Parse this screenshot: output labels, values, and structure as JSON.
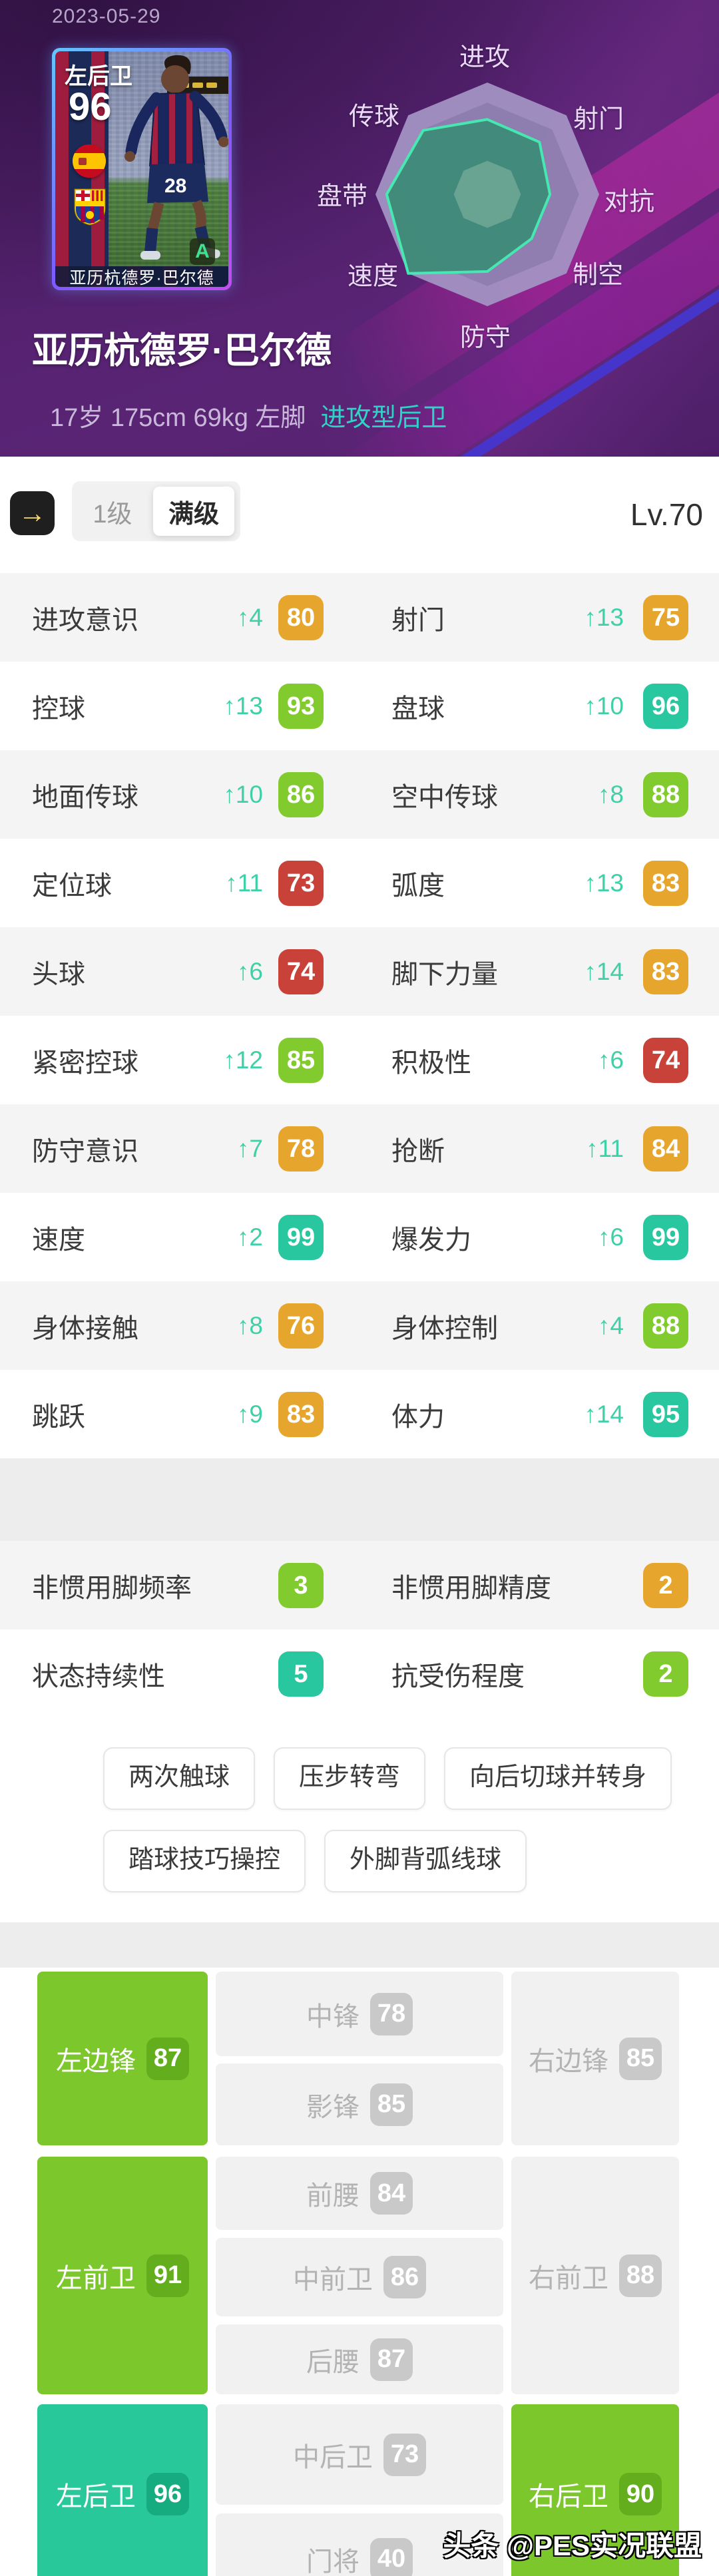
{
  "colors": {
    "teal": "#29c7a0",
    "green": "#82cb2f",
    "orange": "#e6a62e",
    "red": "#c8423a",
    "accent_up": "#3ed0a6",
    "pos_green": "#7cc72c",
    "pos_teal": "#28c89b",
    "hero_purple": "#552270",
    "style_text": "#2fd3c5"
  },
  "header": {
    "date": "2023-05-29",
    "card": {
      "position": "左后卫",
      "rating": "96",
      "grade": "A",
      "shirt_number": "28",
      "caption": "亚历杭德罗·巴尔德"
    },
    "player_name": "亚历杭德罗·巴尔德",
    "info": "17岁 175cm 69kg 左脚",
    "style": "进攻型后卫"
  },
  "chart_data": {
    "type": "radar",
    "title": "",
    "categories": [
      "进攻",
      "射门",
      "对抗",
      "制空",
      "防守",
      "速度",
      "盘带",
      "传球"
    ],
    "values": [
      67,
      66,
      56,
      56,
      69,
      100,
      90,
      81
    ],
    "max": 100,
    "inner_ring_pct": 30,
    "grid": "octagon",
    "legend_position": "none"
  },
  "toolbar": {
    "back_arrow": "→",
    "tab_level1": "1级",
    "tab_max": "满级",
    "level": "Lv.70"
  },
  "stats": {
    "rows": [
      {
        "left": {
          "label": "进攻意识",
          "delta": "↑4",
          "value": "80",
          "color": "orange"
        },
        "right": {
          "label": "射门",
          "delta": "↑13",
          "value": "75",
          "color": "orange"
        }
      },
      {
        "left": {
          "label": "控球",
          "delta": "↑13",
          "value": "93",
          "color": "green"
        },
        "right": {
          "label": "盘球",
          "delta": "↑10",
          "value": "96",
          "color": "teal"
        }
      },
      {
        "left": {
          "label": "地面传球",
          "delta": "↑10",
          "value": "86",
          "color": "green"
        },
        "right": {
          "label": "空中传球",
          "delta": "↑8",
          "value": "88",
          "color": "green"
        }
      },
      {
        "left": {
          "label": "定位球",
          "delta": "↑11",
          "value": "73",
          "color": "red"
        },
        "right": {
          "label": "弧度",
          "delta": "↑13",
          "value": "83",
          "color": "orange"
        }
      },
      {
        "left": {
          "label": "头球",
          "delta": "↑6",
          "value": "74",
          "color": "red"
        },
        "right": {
          "label": "脚下力量",
          "delta": "↑14",
          "value": "83",
          "color": "orange"
        }
      },
      {
        "left": {
          "label": "紧密控球",
          "delta": "↑12",
          "value": "85",
          "color": "green"
        },
        "right": {
          "label": "积极性",
          "delta": "↑6",
          "value": "74",
          "color": "red"
        }
      },
      {
        "left": {
          "label": "防守意识",
          "delta": "↑7",
          "value": "78",
          "color": "orange"
        },
        "right": {
          "label": "抢断",
          "delta": "↑11",
          "value": "84",
          "color": "orange"
        }
      },
      {
        "left": {
          "label": "速度",
          "delta": "↑2",
          "value": "99",
          "color": "teal"
        },
        "right": {
          "label": "爆发力",
          "delta": "↑6",
          "value": "99",
          "color": "teal"
        }
      },
      {
        "left": {
          "label": "身体接触",
          "delta": "↑8",
          "value": "76",
          "color": "orange"
        },
        "right": {
          "label": "身体控制",
          "delta": "↑4",
          "value": "88",
          "color": "green"
        }
      },
      {
        "left": {
          "label": "跳跃",
          "delta": "↑9",
          "value": "83",
          "color": "orange"
        },
        "right": {
          "label": "体力",
          "delta": "↑14",
          "value": "95",
          "color": "teal"
        }
      }
    ]
  },
  "extra_stats": {
    "rows": [
      {
        "left": {
          "label": "非惯用脚频率",
          "value": "3",
          "color": "green"
        },
        "right": {
          "label": "非惯用脚精度",
          "value": "2",
          "color": "orange"
        }
      },
      {
        "left": {
          "label": "状态持续性",
          "value": "5",
          "color": "teal"
        },
        "right": {
          "label": "抗受伤程度",
          "value": "2",
          "color": "green"
        }
      }
    ]
  },
  "skills": [
    "两次触球",
    "压步转弯",
    "向后切球并转身",
    "踏球技巧操控",
    "外脚背弧线球"
  ],
  "positions": {
    "bands": [
      {
        "left": {
          "label": "左边锋",
          "value": "87",
          "style": "green"
        },
        "right": {
          "label": "右边锋",
          "value": "85",
          "style": "gray"
        },
        "middle": [
          {
            "label": "中锋",
            "value": "78"
          },
          {
            "label": "影锋",
            "value": "85"
          }
        ]
      },
      {
        "left": {
          "label": "左前卫",
          "value": "91",
          "style": "green"
        },
        "right": {
          "label": "右前卫",
          "value": "88",
          "style": "gray"
        },
        "middle": [
          {
            "label": "前腰",
            "value": "84"
          },
          {
            "label": "中前卫",
            "value": "86"
          },
          {
            "label": "后腰",
            "value": "87"
          }
        ]
      },
      {
        "left": {
          "label": "左后卫",
          "value": "96",
          "style": "teal"
        },
        "right": {
          "label": "右后卫",
          "value": "90",
          "style": "green"
        },
        "middle": [
          {
            "label": "中后卫",
            "value": "73"
          },
          {
            "label": "门将",
            "value": "40"
          }
        ]
      }
    ]
  },
  "watermark": "头条 @PES实况联盟"
}
